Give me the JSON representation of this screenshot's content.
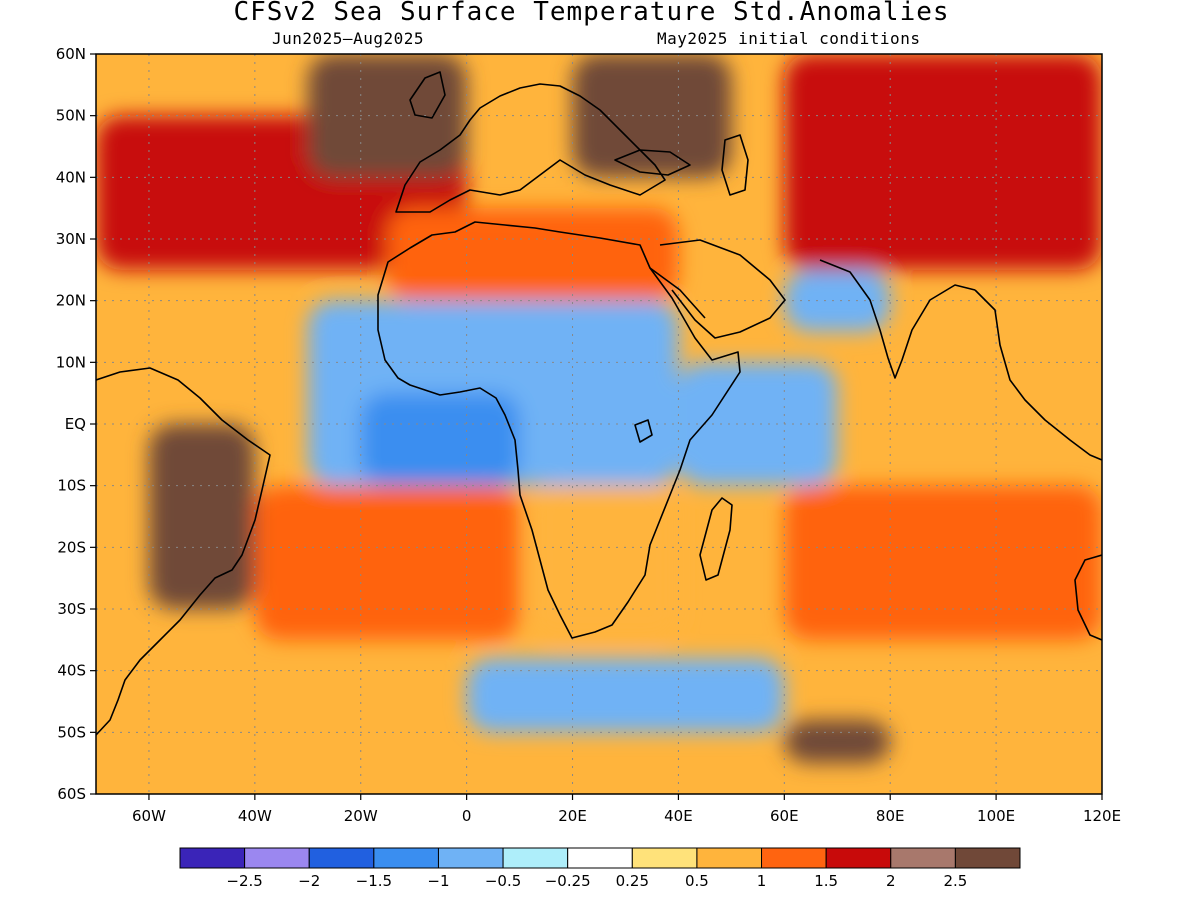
{
  "title": "CFSv2 Sea Surface Temperature Std.Anomalies",
  "subtitle_left": "Jun2025–Aug2025",
  "subtitle_right": "May2025 initial conditions",
  "map": {
    "lon_range": [
      -70,
      120
    ],
    "lat_range": [
      -60,
      60
    ],
    "lat_ticks": [
      {
        "value": 60,
        "label": "60N"
      },
      {
        "value": 50,
        "label": "50N"
      },
      {
        "value": 40,
        "label": "40N"
      },
      {
        "value": 30,
        "label": "30N"
      },
      {
        "value": 20,
        "label": "20N"
      },
      {
        "value": 10,
        "label": "10N"
      },
      {
        "value": 0,
        "label": "EQ"
      },
      {
        "value": -10,
        "label": "10S"
      },
      {
        "value": -20,
        "label": "20S"
      },
      {
        "value": -30,
        "label": "30S"
      },
      {
        "value": -40,
        "label": "40S"
      },
      {
        "value": -50,
        "label": "50S"
      },
      {
        "value": -60,
        "label": "60S"
      }
    ],
    "lon_ticks": [
      {
        "value": -60,
        "label": "60W"
      },
      {
        "value": -40,
        "label": "40W"
      },
      {
        "value": -20,
        "label": "20W"
      },
      {
        "value": 0,
        "label": "0"
      },
      {
        "value": 20,
        "label": "20E"
      },
      {
        "value": 40,
        "label": "40E"
      },
      {
        "value": 60,
        "label": "60E"
      },
      {
        "value": 80,
        "label": "80E"
      },
      {
        "value": 100,
        "label": "100E"
      },
      {
        "value": 120,
        "label": "120E"
      }
    ],
    "grid": true
  },
  "colorbar": {
    "colors": [
      "#3a24b8",
      "#9b87f0",
      "#2160e0",
      "#3a8ef0",
      "#6fb2f5",
      "#aeeefa",
      "#ffffff",
      "#ffe27a",
      "#ffb43c",
      "#ff6410",
      "#c80a0a",
      "#a8786c",
      "#704838"
    ],
    "labels": [
      "−2.5",
      "−2",
      "−1.5",
      "−1",
      "−0.5",
      "−0.25",
      "0.25",
      "0.5",
      "1",
      "1.5",
      "2",
      "2.5"
    ]
  },
  "regions": [
    {
      "name": "north-atlantic-warm",
      "lon": [
        -70,
        0
      ],
      "lat": [
        25,
        50
      ],
      "value": 1.6
    },
    {
      "name": "europe-brown",
      "lon": [
        -30,
        0
      ],
      "lat": [
        40,
        60
      ],
      "value": 2.6
    },
    {
      "name": "eastern-europe-brown",
      "lon": [
        20,
        50
      ],
      "lat": [
        40,
        60
      ],
      "value": 2.6
    },
    {
      "name": "north-africa-warm",
      "lon": [
        -15,
        40
      ],
      "lat": [
        20,
        35
      ],
      "value": 1.2
    },
    {
      "name": "west-africa-cool",
      "lon": [
        -30,
        40
      ],
      "lat": [
        -10,
        20
      ],
      "value": -0.8
    },
    {
      "name": "west-africa-cool-core",
      "lon": [
        -20,
        10
      ],
      "lat": [
        -10,
        5
      ],
      "value": -1.3
    },
    {
      "name": "southern-africa-warm",
      "lon": [
        12,
        40
      ],
      "lat": [
        -35,
        -10
      ],
      "value": 0.6
    },
    {
      "name": "south-america-brown",
      "lon": [
        -60,
        -40
      ],
      "lat": [
        -30,
        0
      ],
      "value": 2.6
    },
    {
      "name": "south-atlantic-warm",
      "lon": [
        -40,
        10
      ],
      "lat": [
        -35,
        -10
      ],
      "value": 1.1
    },
    {
      "name": "indian-ocean-cool",
      "lon": [
        40,
        70
      ],
      "lat": [
        -10,
        10
      ],
      "value": -0.6
    },
    {
      "name": "indian-ocean-warm",
      "lon": [
        60,
        120
      ],
      "lat": [
        -35,
        -10
      ],
      "value": 1.0
    },
    {
      "name": "southern-ocean-cool",
      "lon": [
        0,
        60
      ],
      "lat": [
        -50,
        -38
      ],
      "value": -0.9
    },
    {
      "name": "southern-ocean-brown",
      "lon": [
        60,
        80
      ],
      "lat": [
        -55,
        -48
      ],
      "value": 2.6
    },
    {
      "name": "asia-warm",
      "lon": [
        60,
        120
      ],
      "lat": [
        25,
        60
      ],
      "value": 1.5
    },
    {
      "name": "arabian-sea-cool",
      "lon": [
        60,
        80
      ],
      "lat": [
        15,
        25
      ],
      "value": -0.7
    }
  ]
}
